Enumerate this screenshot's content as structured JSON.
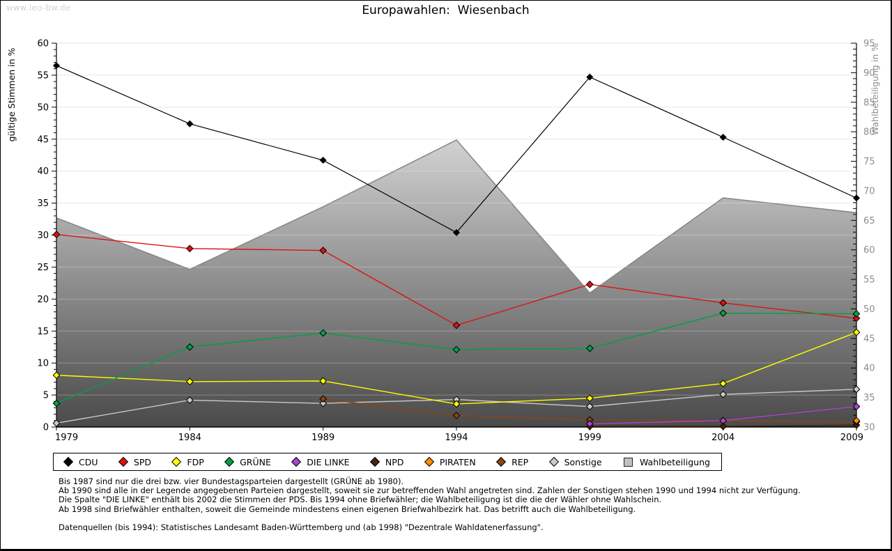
{
  "watermark": "www.leo-bw.de",
  "title": "Europawahlen:  Wiesenbach",
  "chart_data": {
    "type": "line",
    "title": "Europawahlen: Wiesenbach",
    "x_labels": [
      "1979",
      "1984",
      "1989",
      "1994",
      "1999",
      "2004",
      "2009"
    ],
    "grid": true,
    "legend_position": "bottom",
    "left_axis": {
      "label": "gültige Stimmen in %",
      "min": 0,
      "max": 60,
      "major_tick": 5,
      "minor_tick": 1,
      "tick_labels": [
        "0",
        "5",
        "10",
        "15",
        "20",
        "25",
        "30",
        "35",
        "40",
        "45",
        "50",
        "55",
        "60"
      ]
    },
    "right_axis": {
      "label": "Wahlbeteiligung in %",
      "min": 30,
      "max": 95,
      "major_tick": 5,
      "minor_tick": 1,
      "tick_labels": [
        "30",
        "35",
        "40",
        "45",
        "50",
        "55",
        "60",
        "65",
        "70",
        "75",
        "80",
        "85",
        "90",
        "95"
      ]
    },
    "series": [
      {
        "name": "CDU",
        "color": "#000000",
        "axis": "left",
        "marker": "diamond",
        "values": [
          56.5,
          47.4,
          41.7,
          30.4,
          54.7,
          45.3,
          35.8
        ]
      },
      {
        "name": "SPD",
        "color": "#dd1111",
        "axis": "left",
        "marker": "diamond",
        "values": [
          30.1,
          27.9,
          27.6,
          15.9,
          22.3,
          19.4,
          17.0
        ]
      },
      {
        "name": "FDP",
        "color": "#ffff00",
        "axis": "left",
        "marker": "diamond",
        "values": [
          8.1,
          7.1,
          7.2,
          3.6,
          4.5,
          6.8,
          14.8
        ]
      },
      {
        "name": "GRÜNE",
        "color": "#00a045",
        "axis": "left",
        "marker": "diamond",
        "values": [
          3.7,
          12.5,
          14.7,
          12.1,
          12.3,
          17.8,
          17.7
        ]
      },
      {
        "name": "DIE LINKE",
        "color": "#aa44cc",
        "axis": "left",
        "marker": "diamond",
        "values": [
          null,
          null,
          null,
          null,
          0.5,
          1.0,
          3.2
        ]
      },
      {
        "name": "NPD",
        "color": "#45240b",
        "axis": "left",
        "marker": "diamond",
        "values": [
          null,
          null,
          null,
          null,
          0.1,
          0.1,
          0.3
        ]
      },
      {
        "name": "PIRATEN",
        "color": "#ff8c00",
        "axis": "left",
        "marker": "diamond",
        "values": [
          null,
          null,
          null,
          null,
          null,
          null,
          1.0
        ]
      },
      {
        "name": "REP",
        "color": "#8b4513",
        "axis": "left",
        "marker": "diamond",
        "values": [
          null,
          null,
          4.4,
          1.8,
          1.1,
          1.0,
          0.8
        ]
      },
      {
        "name": "Sonstige",
        "color": "#c9c9c9",
        "axis": "left",
        "marker": "diamond",
        "values": [
          0.6,
          4.2,
          3.7,
          4.3,
          3.2,
          5.1,
          5.9
        ]
      },
      {
        "name": "Wahlbeteiligung",
        "color": "#c0c0c0",
        "axis": "right",
        "marker": "square",
        "type": "area",
        "border_color": "#878787",
        "values": [
          65.4,
          56.7,
          67.3,
          78.6,
          52.7,
          68.8,
          66.3
        ]
      }
    ]
  },
  "styles": {
    "grid_color": "#e2e2e2",
    "grid_overlay_on_area": "rgba(255,255,255,0.28)",
    "area_gradient_top": "#ffffff",
    "area_gradient_bottom": "#4a4a4a",
    "right_axis_text_color": "#8c8c8c",
    "axis_color": "#000000",
    "watermark_color": "#d0d0d0"
  },
  "footnotes": [
    "Bis 1987 sind nur die drei bzw. vier Bundestagsparteien dargestellt (GRÜNE ab 1980).",
    "Ab 1990 sind alle in der Legende angegebenen Parteien dargestellt, soweit sie zur betreffenden Wahl angetreten sind. Zahlen der Sonstigen stehen 1990 und 1994 nicht zur Verfügung.",
    "Die Spalte \"DIE LINKE\" enthält bis 2002 die Stimmen der PDS. Bis 1994 ohne Briefwähler; die Wahlbeteiligung ist die die der Wähler ohne Wahlschein.",
    "Ab 1998 sind Briefwähler enthalten, soweit die Gemeinde mindestens einen eigenen Briefwahlbezirk hat. Das betrifft auch die Wahlbeteiligung."
  ],
  "source_line": "Datenquellen (bis 1994): Statistisches Landesamt Baden-Württemberg und (ab 1998) \"Dezentrale Wahldatenerfassung\"."
}
